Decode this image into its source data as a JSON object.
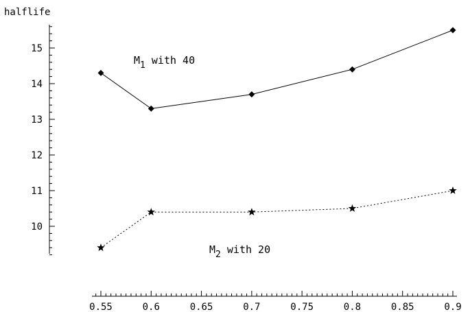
{
  "chart_data": {
    "type": "line",
    "ylabel": "halflife",
    "xlabel": "",
    "xlim": [
      0.545,
      0.905
    ],
    "ylim": [
      9.1,
      15.7
    ],
    "xticks": [
      0.55,
      0.6,
      0.65,
      0.7,
      0.75,
      0.8,
      0.85,
      0.9
    ],
    "xtick_labels": [
      "0.55",
      "0.6",
      "0.65",
      "0.7",
      "0.75",
      "0.8",
      "0.85",
      "0.9"
    ],
    "yticks": [
      10,
      11,
      12,
      13,
      14,
      15
    ],
    "ytick_labels": [
      "10",
      "11",
      "12",
      "13",
      "14",
      "15"
    ],
    "series": [
      {
        "label_main": "M",
        "label_sub": "1",
        "label_rest": " with 40",
        "marker": "diamond",
        "line_style": "solid",
        "x": [
          0.55,
          0.6,
          0.7,
          0.8,
          0.9
        ],
        "y": [
          14.3,
          13.3,
          13.7,
          14.4,
          15.5
        ]
      },
      {
        "label_main": "M",
        "label_sub": "2",
        "label_rest": " with 20",
        "marker": "star",
        "line_style": "dotted",
        "x": [
          0.55,
          0.6,
          0.7,
          0.8,
          0.9
        ],
        "y": [
          9.4,
          10.4,
          10.4,
          10.5,
          11.0
        ]
      }
    ]
  }
}
